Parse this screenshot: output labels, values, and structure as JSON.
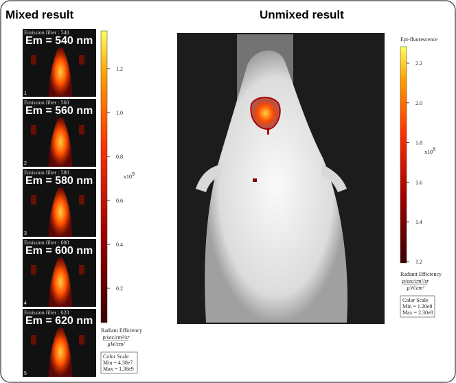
{
  "left_title": "Mixed result",
  "right_title": "Unmixed result",
  "panels": [
    {
      "filter": "Emission filter : 540",
      "label": "Em = 540 nm",
      "index": "1"
    },
    {
      "filter": "Emission filter : 560",
      "label": "Em = 560 nm",
      "index": "2"
    },
    {
      "filter": "Emission filter : 580",
      "label": "Em = 580 nm",
      "index": "3"
    },
    {
      "filter": "Emission filter : 600",
      "label": "Em = 600 nm",
      "index": "4"
    },
    {
      "filter": "Emission filter : 620",
      "label": "Em = 620 nm",
      "index": "5"
    }
  ],
  "left_colorbar": {
    "ticks": [
      "1.2",
      "1.0",
      "0.8",
      "0.6",
      "0.4",
      "0.2"
    ],
    "exponent_base": "x10",
    "exponent": "9",
    "unit_title": "Radiant Efficiency",
    "unit_num": "p/sec/cm²/sr",
    "unit_den": "µW/cm²",
    "scale_title": "Color Scale",
    "min": "Min = 4.38e7",
    "max": "Max = 1.38e9"
  },
  "right_colorbar": {
    "title": "Epi-fluorescence",
    "ticks": [
      "2.2",
      "2.0",
      "1.8",
      "1.6",
      "1.4",
      "1.2"
    ],
    "exponent_base": "x10",
    "exponent": "8",
    "unit_title": "Radiant Efficiency",
    "unit_num": "p/sec/cm²/sr",
    "unit_den": "µW/cm²",
    "scale_title": "Color Scale",
    "min": "Min = 1.20e8",
    "max": "Max = 2.30e8"
  }
}
